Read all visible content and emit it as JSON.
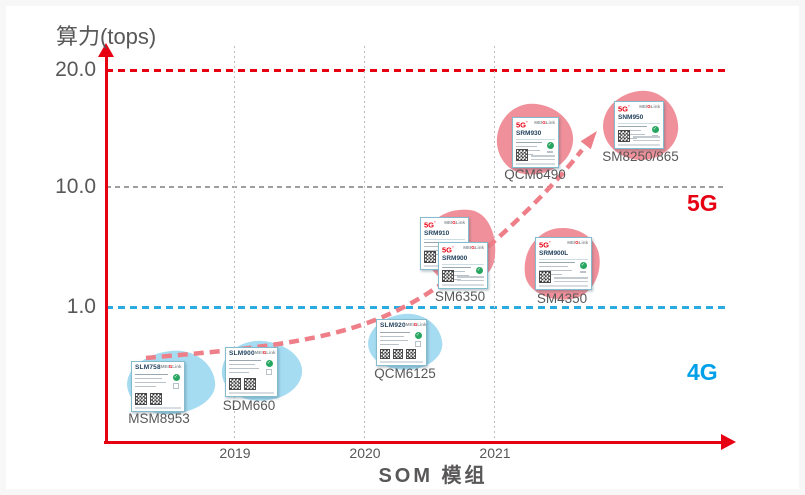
{
  "axes": {
    "y": {
      "title": "算力(tops)",
      "ticks": [
        "20.0",
        "10.0",
        "1.0"
      ]
    },
    "x": {
      "title": "SOM 模组",
      "ticks": [
        "2019",
        "2020",
        "2021"
      ]
    }
  },
  "bands": {
    "five_g": "5G",
    "four_g": "4G"
  },
  "badge_5g_text": "5G",
  "logo": {
    "prefix": "MEI",
    "accent": "G",
    "suffix": "Link"
  },
  "colors": {
    "axis_red": "#e60012",
    "band_5g": "#e60012",
    "band_4g": "#00a0e9",
    "blue_line": "#29abe2",
    "gray_line": "#9e9f9f",
    "blob_4g": "#a6dcf2",
    "blob_5g": "#f0909a",
    "trend_arrow": "#ee7f89",
    "text_gray": "#595757",
    "cert_green": "#27a661"
  },
  "modules": [
    {
      "id": "msm8953",
      "platform": "MSM8953",
      "network": "4G",
      "cards": [
        {
          "model": "SLM758",
          "badge_5g": false,
          "qr_count": 2
        }
      ]
    },
    {
      "id": "sdm660",
      "platform": "SDM660",
      "network": "4G",
      "cards": [
        {
          "model": "SLM900",
          "badge_5g": false,
          "qr_count": 2
        }
      ]
    },
    {
      "id": "qcm6125",
      "platform": "QCM6125",
      "network": "4G",
      "cards": [
        {
          "model": "SLM920",
          "badge_5g": false,
          "qr_count": 3
        }
      ]
    },
    {
      "id": "sm6350",
      "platform": "SM6350",
      "network": "5G",
      "cards": [
        {
          "model": "SRM910",
          "badge_5g": true,
          "qr_count": 1
        },
        {
          "model": "SRM900",
          "badge_5g": true,
          "qr_count": 1
        }
      ]
    },
    {
      "id": "sm4350",
      "platform": "SM4350",
      "network": "5G",
      "cards": [
        {
          "model": "SRM900L",
          "badge_5g": true,
          "qr_count": 1
        }
      ]
    },
    {
      "id": "qcm6490",
      "platform": "QCM6490",
      "network": "5G",
      "cards": [
        {
          "model": "SRM930",
          "badge_5g": true,
          "qr_count": 1
        }
      ]
    },
    {
      "id": "sm8250",
      "platform": "SM8250/865",
      "network": "5G",
      "cards": [
        {
          "model": "SNM950",
          "badge_5g": true,
          "qr_count": 1
        }
      ]
    }
  ],
  "chart_data": {
    "type": "scatter",
    "title": "",
    "xlabel": "SOM 模组",
    "ylabel": "算力(tops)",
    "x_ticks": [
      "2019",
      "2020",
      "2021"
    ],
    "y_ticks": [
      1.0,
      10.0,
      20.0
    ],
    "reference_lines": [
      {
        "y": 20.0,
        "style": "dashed",
        "color": "#e60012"
      },
      {
        "y": 10.0,
        "style": "dashed",
        "color": "#9e9f9f"
      },
      {
        "y": 1.0,
        "style": "dashed",
        "color": "#29abe2"
      }
    ],
    "bands": [
      {
        "label": "5G",
        "region": "above 1.0 tops",
        "color": "#e60012"
      },
      {
        "label": "4G",
        "region": "below 1.0 tops",
        "color": "#00a0e9"
      }
    ],
    "points": [
      {
        "module": "SLM758",
        "platform": "MSM8953",
        "network": "4G",
        "x_year_est": 2018.4,
        "y_tops_est": 0.3
      },
      {
        "module": "SLM900",
        "platform": "SDM660",
        "network": "4G",
        "x_year_est": 2019.1,
        "y_tops_est": 0.4
      },
      {
        "module": "SLM920",
        "platform": "QCM6125",
        "network": "4G",
        "x_year_est": 2020.3,
        "y_tops_est": 0.8
      },
      {
        "module": "SRM910/SRM900",
        "platform": "SM6350",
        "network": "5G",
        "x_year_est": 2020.7,
        "y_tops_est": 4
      },
      {
        "module": "SRM900L",
        "platform": "SM4350",
        "network": "5G",
        "x_year_est": 2021.5,
        "y_tops_est": 3.5
      },
      {
        "module": "SRM930",
        "platform": "QCM6490",
        "network": "5G",
        "x_year_est": 2021.3,
        "y_tops_est": 12
      },
      {
        "module": "SNM950",
        "platform": "SM8250/865",
        "network": "5G",
        "x_year_est": 2022.1,
        "y_tops_est": 14
      }
    ],
    "annotations": [
      "dashed rising trend arrow from 4G modules toward 5G modules"
    ],
    "grid": "dotted vertical year lines; dashed horizontal reference lines",
    "legend_position": "none"
  }
}
